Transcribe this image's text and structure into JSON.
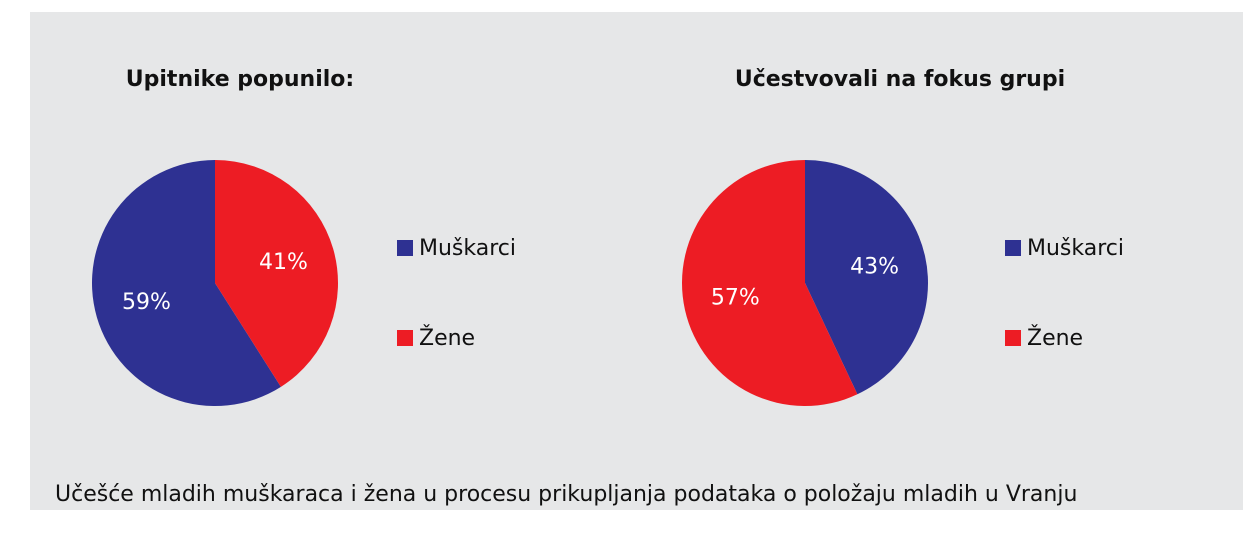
{
  "chart_data": [
    {
      "type": "pie",
      "title": "Upitnike popunilo:",
      "categories": [
        "Muškarci",
        "Žene"
      ],
      "values": [
        59,
        41
      ],
      "value_labels": [
        "59%",
        "41%"
      ],
      "colors": [
        "#2e3192",
        "#ed1c24"
      ],
      "direction": "counterclockwise",
      "legend": "right"
    },
    {
      "type": "pie",
      "title": "Učestvovali na fokus grupi",
      "categories": [
        "Muškarci",
        "Žene"
      ],
      "values": [
        43,
        57
      ],
      "value_labels": [
        "43%",
        "57%"
      ],
      "colors": [
        "#2e3192",
        "#ed1c24"
      ],
      "direction": "clockwise",
      "legend": "right"
    }
  ],
  "caption": "Učešće mladih muškaraca i žena u procesu prikupljanja podataka o položaju mladih u Vranju"
}
